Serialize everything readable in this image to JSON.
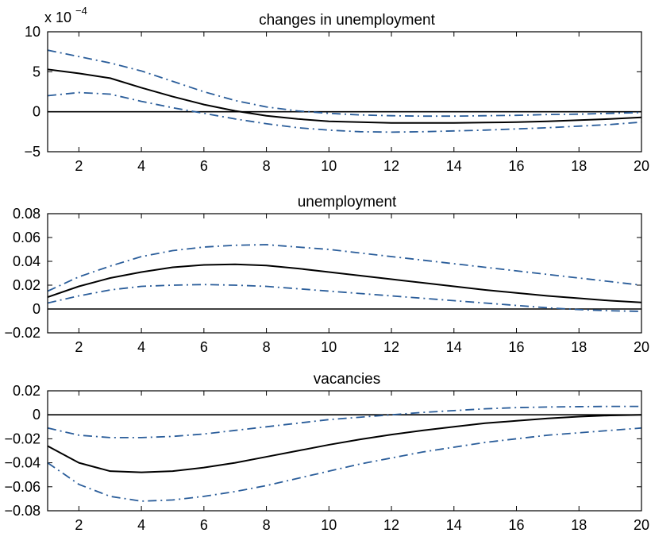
{
  "chart_data": [
    {
      "type": "line",
      "title": "changes in unemployment",
      "scale_label": "x 10",
      "scale_exponent": "−4",
      "x": [
        1,
        2,
        3,
        4,
        5,
        6,
        7,
        8,
        9,
        10,
        11,
        12,
        13,
        14,
        15,
        16,
        17,
        18,
        19,
        20
      ],
      "xlim": [
        1,
        20
      ],
      "ylim": [
        -5,
        10
      ],
      "xticks": [
        2,
        4,
        6,
        8,
        10,
        12,
        14,
        16,
        18,
        20
      ],
      "yticks": [
        {
          "value": -5,
          "label": "−5"
        },
        {
          "value": 0,
          "label": "0"
        },
        {
          "value": 5,
          "label": "5"
        },
        {
          "value": 10,
          "label": "10"
        }
      ],
      "zero_line": 0,
      "series": [
        {
          "role": "point",
          "color": "#000000",
          "dash": "solid",
          "values": [
            5.3,
            4.8,
            4.2,
            3.0,
            1.9,
            0.9,
            0.1,
            -0.5,
            -0.9,
            -1.2,
            -1.3,
            -1.4,
            -1.4,
            -1.4,
            -1.35,
            -1.3,
            -1.2,
            -1.05,
            -0.9,
            -0.7
          ]
        },
        {
          "role": "upper",
          "color": "#2a5d9a",
          "dash": "dashdot",
          "values": [
            7.7,
            6.9,
            6.1,
            5.1,
            3.8,
            2.5,
            1.4,
            0.6,
            0.1,
            -0.2,
            -0.4,
            -0.5,
            -0.55,
            -0.55,
            -0.5,
            -0.45,
            -0.35,
            -0.3,
            -0.2,
            -0.1
          ]
        },
        {
          "role": "lower",
          "color": "#2a5d9a",
          "dash": "dashdot",
          "values": [
            2.0,
            2.4,
            2.2,
            1.3,
            0.5,
            -0.2,
            -0.9,
            -1.5,
            -2.0,
            -2.3,
            -2.5,
            -2.55,
            -2.5,
            -2.4,
            -2.3,
            -2.15,
            -2.0,
            -1.8,
            -1.6,
            -1.3
          ]
        }
      ]
    },
    {
      "type": "line",
      "title": "unemployment",
      "x": [
        1,
        2,
        3,
        4,
        5,
        6,
        7,
        8,
        9,
        10,
        11,
        12,
        13,
        14,
        15,
        16,
        17,
        18,
        19,
        20
      ],
      "xlim": [
        1,
        20
      ],
      "ylim": [
        -0.02,
        0.08
      ],
      "xticks": [
        2,
        4,
        6,
        8,
        10,
        12,
        14,
        16,
        18,
        20
      ],
      "yticks": [
        {
          "value": -0.02,
          "label": "−0.02"
        },
        {
          "value": 0,
          "label": "0"
        },
        {
          "value": 0.02,
          "label": "0.02"
        },
        {
          "value": 0.04,
          "label": "0.04"
        },
        {
          "value": 0.06,
          "label": "0.06"
        },
        {
          "value": 0.08,
          "label": "0.08"
        }
      ],
      "zero_line": 0,
      "series": [
        {
          "role": "point",
          "color": "#000000",
          "dash": "solid",
          "values": [
            0.01,
            0.019,
            0.026,
            0.031,
            0.035,
            0.037,
            0.0375,
            0.0365,
            0.034,
            0.031,
            0.028,
            0.025,
            0.022,
            0.019,
            0.016,
            0.0135,
            0.011,
            0.009,
            0.007,
            0.0055
          ]
        },
        {
          "role": "upper",
          "color": "#2a5d9a",
          "dash": "dashdot",
          "values": [
            0.015,
            0.027,
            0.036,
            0.044,
            0.049,
            0.052,
            0.0535,
            0.054,
            0.052,
            0.05,
            0.047,
            0.044,
            0.041,
            0.038,
            0.035,
            0.032,
            0.029,
            0.026,
            0.023,
            0.02
          ]
        },
        {
          "role": "lower",
          "color": "#2a5d9a",
          "dash": "dashdot",
          "values": [
            0.005,
            0.011,
            0.016,
            0.019,
            0.02,
            0.0205,
            0.02,
            0.019,
            0.017,
            0.015,
            0.013,
            0.011,
            0.009,
            0.007,
            0.005,
            0.003,
            0.001,
            -0.0005,
            -0.0015,
            -0.002
          ]
        }
      ]
    },
    {
      "type": "line",
      "title": "vacancies",
      "x": [
        1,
        2,
        3,
        4,
        5,
        6,
        7,
        8,
        9,
        10,
        11,
        12,
        13,
        14,
        15,
        16,
        17,
        18,
        19,
        20
      ],
      "xlim": [
        1,
        20
      ],
      "ylim": [
        -0.08,
        0.02
      ],
      "xticks": [
        2,
        4,
        6,
        8,
        10,
        12,
        14,
        16,
        18,
        20
      ],
      "yticks": [
        {
          "value": -0.08,
          "label": "−0.08"
        },
        {
          "value": -0.06,
          "label": "−0.06"
        },
        {
          "value": -0.04,
          "label": "−0.04"
        },
        {
          "value": -0.02,
          "label": "−0.02"
        },
        {
          "value": 0,
          "label": "0"
        },
        {
          "value": 0.02,
          "label": "0.02"
        }
      ],
      "zero_line": 0,
      "series": [
        {
          "role": "point",
          "color": "#000000",
          "dash": "solid",
          "values": [
            -0.026,
            -0.04,
            -0.047,
            -0.048,
            -0.047,
            -0.044,
            -0.04,
            -0.035,
            -0.03,
            -0.025,
            -0.0205,
            -0.0165,
            -0.013,
            -0.01,
            -0.007,
            -0.005,
            -0.003,
            -0.0015,
            -0.0005,
            0.0
          ]
        },
        {
          "role": "upper",
          "color": "#2a5d9a",
          "dash": "dashdot",
          "values": [
            -0.011,
            -0.017,
            -0.019,
            -0.019,
            -0.018,
            -0.016,
            -0.013,
            -0.01,
            -0.007,
            -0.004,
            -0.002,
            0.0,
            0.002,
            0.0035,
            0.005,
            0.006,
            0.0065,
            0.0068,
            0.007,
            0.007
          ]
        },
        {
          "role": "lower",
          "color": "#2a5d9a",
          "dash": "dashdot",
          "values": [
            -0.04,
            -0.058,
            -0.068,
            -0.072,
            -0.071,
            -0.068,
            -0.064,
            -0.059,
            -0.053,
            -0.047,
            -0.041,
            -0.036,
            -0.031,
            -0.027,
            -0.023,
            -0.02,
            -0.017,
            -0.015,
            -0.013,
            -0.011
          ]
        }
      ]
    }
  ]
}
